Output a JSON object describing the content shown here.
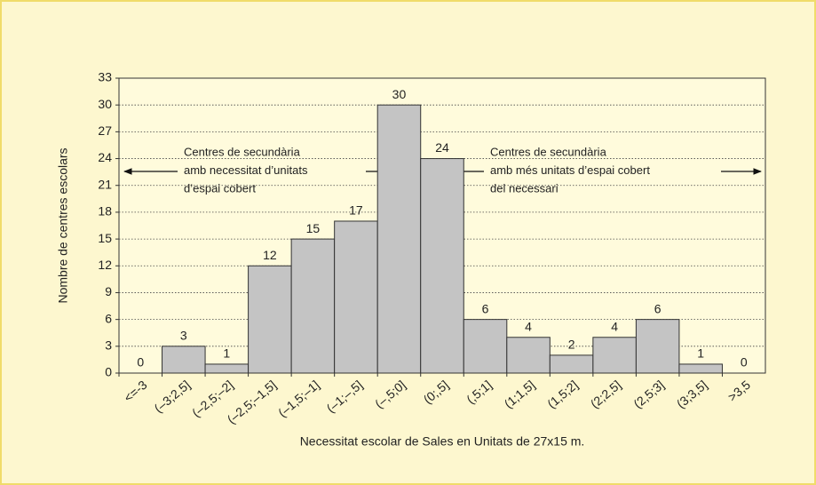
{
  "chart_data": {
    "type": "bar",
    "x_label": "Necessitat escolar de Sales en Unitats de 27x15 m.",
    "y_label": "Nombre de centres escolars",
    "categories": [
      "<=-3",
      "(–3;2,5]",
      "(–2,5;–2]",
      "(–2,5;–1,5]",
      "(–1,5;–1]",
      "(–1;–,5]",
      "(–,5;0]",
      "(0;,5]",
      "(,5;1]",
      "(1;1,5]",
      "(1,5;2]",
      "(2;2,5]",
      "(2,5;3]",
      "(3;3,5]",
      ">3,5"
    ],
    "values": [
      0,
      3,
      1,
      12,
      15,
      17,
      30,
      24,
      6,
      4,
      2,
      4,
      6,
      1,
      0
    ],
    "color": "#c4c4c4",
    "ylim": [
      0,
      33
    ],
    "yticks": [
      0,
      3,
      6,
      9,
      12,
      15,
      18,
      21,
      24,
      27,
      30,
      33
    ],
    "grid": true,
    "annotations": [
      {
        "lines": [
          "Centres de secundària",
          "amb necessitat d’unitats",
          "d’espai cobert"
        ]
      },
      {
        "lines": [
          "Centres de secundària",
          "amb més unitats d’espai cobert",
          "del necessari"
        ]
      }
    ]
  }
}
